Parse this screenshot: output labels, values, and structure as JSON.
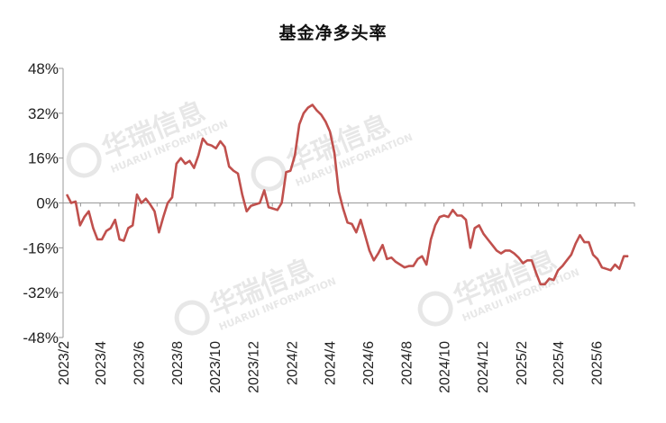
{
  "chart_data": {
    "type": "line",
    "title": "基金净多头率",
    "xlabel": "",
    "ylabel": "",
    "ylim": [
      -48,
      48
    ],
    "yticks": [
      "48%",
      "32%",
      "16%",
      "0%",
      "-16%",
      "-32%",
      "-48%"
    ],
    "ytick_values": [
      48,
      32,
      16,
      0,
      -16,
      -32,
      -48
    ],
    "xtick_labels": [
      "2023/2",
      "2023/4",
      "2023/6",
      "2023/8",
      "2023/10",
      "2023/12",
      "2024/2",
      "2024/4",
      "2024/6",
      "2024/8",
      "2024/10",
      "2024/12",
      "2025/2",
      "2025/4",
      "2025/6"
    ],
    "grid": false,
    "legend": "none",
    "line_color": "#c0504d",
    "x": [
      "2023-02-07",
      "2023-02-14",
      "2023-02-21",
      "2023-02-28",
      "2023-03-07",
      "2023-03-14",
      "2023-03-21",
      "2023-03-28",
      "2023-04-04",
      "2023-04-11",
      "2023-04-18",
      "2023-04-25",
      "2023-05-02",
      "2023-05-09",
      "2023-05-16",
      "2023-05-23",
      "2023-05-30",
      "2023-06-06",
      "2023-06-13",
      "2023-06-20",
      "2023-06-27",
      "2023-07-04",
      "2023-07-11",
      "2023-07-18",
      "2023-07-25",
      "2023-08-01",
      "2023-08-08",
      "2023-08-15",
      "2023-08-22",
      "2023-08-29",
      "2023-09-05",
      "2023-09-12",
      "2023-09-19",
      "2023-09-26",
      "2023-10-03",
      "2023-10-10",
      "2023-10-17",
      "2023-10-24",
      "2023-10-31",
      "2023-11-07",
      "2023-11-14",
      "2023-11-21",
      "2023-11-28",
      "2023-12-05",
      "2023-12-12",
      "2023-12-19",
      "2023-12-26",
      "2024-01-02",
      "2024-01-09",
      "2024-01-16",
      "2024-01-23",
      "2024-01-30",
      "2024-02-06",
      "2024-02-13",
      "2024-02-20",
      "2024-02-27",
      "2024-03-05",
      "2024-03-12",
      "2024-03-19",
      "2024-03-26",
      "2024-04-02",
      "2024-04-09",
      "2024-04-16",
      "2024-04-23",
      "2024-04-30",
      "2024-05-07",
      "2024-05-14",
      "2024-05-21",
      "2024-05-28",
      "2024-06-04",
      "2024-06-11",
      "2024-06-18",
      "2024-06-25",
      "2024-07-02",
      "2024-07-09",
      "2024-07-16",
      "2024-07-23",
      "2024-07-30",
      "2024-08-06",
      "2024-08-13",
      "2024-08-20",
      "2024-08-27",
      "2024-09-03",
      "2024-09-10",
      "2024-09-17",
      "2024-09-24",
      "2024-10-01",
      "2024-10-08",
      "2024-10-15",
      "2024-10-22",
      "2024-10-29",
      "2024-11-05",
      "2024-11-12",
      "2024-11-19",
      "2024-11-26",
      "2024-12-03",
      "2024-12-10",
      "2024-12-17",
      "2024-12-24",
      "2024-12-31",
      "2025-01-07",
      "2025-01-14",
      "2025-01-21",
      "2025-01-28",
      "2025-02-04",
      "2025-02-11",
      "2025-02-18",
      "2025-02-25",
      "2025-03-04",
      "2025-03-11",
      "2025-03-18",
      "2025-03-25",
      "2025-04-01",
      "2025-04-08",
      "2025-04-15",
      "2025-04-22",
      "2025-04-29",
      "2025-05-06",
      "2025-05-13",
      "2025-05-20",
      "2025-05-27",
      "2025-06-03",
      "2025-06-10",
      "2025-06-17",
      "2025-06-24",
      "2025-07-01",
      "2025-07-08",
      "2025-07-15",
      "2025-07-22"
    ],
    "values": [
      3,
      0,
      0.5,
      -8,
      -5,
      -3,
      -9,
      -13,
      -13,
      -10,
      -9,
      -6,
      -13,
      -13.5,
      -9,
      -8,
      3,
      0,
      1.5,
      -0.5,
      -3,
      -10.5,
      -5,
      0,
      2,
      14,
      16,
      14,
      15,
      12.5,
      17,
      23,
      21,
      20.5,
      19.5,
      22,
      20,
      13,
      11.5,
      10.5,
      3,
      -3,
      -1,
      -0.5,
      0,
      4.5,
      -1.5,
      -2,
      -2.5,
      0,
      11,
      11.5,
      17,
      28,
      32,
      34,
      35,
      33,
      31.5,
      29,
      25.5,
      18,
      4,
      -2,
      -7,
      -7.5,
      -10.5,
      -6,
      -11.5,
      -17,
      -20.5,
      -18,
      -15,
      -20,
      -19.5,
      -21,
      -22,
      -23,
      -22.5,
      -22.5,
      -20,
      -19,
      -22,
      -13,
      -8,
      -5,
      -4.5,
      -5,
      -2.5,
      -4.5,
      -4.5,
      -6,
      -16,
      -9,
      -8,
      -11,
      -13,
      -15,
      -17,
      -18,
      -17,
      -17,
      -18,
      -19.5,
      -21.5,
      -20.5,
      -20.5,
      -25,
      -29,
      -29,
      -27,
      -27.5,
      -24,
      -22.5,
      -20.5,
      -18.5,
      -14.5,
      -11.5,
      -14,
      -14,
      -18.5,
      -20,
      -23,
      -23.5,
      -24,
      -22,
      -23.5,
      -19,
      -19
    ]
  },
  "watermarks": [
    {
      "name": "华瑞信息",
      "sub": "HUARUI INFORMATION"
    },
    {
      "name": "华瑞信息",
      "sub": "HUARUI INFORMATION"
    },
    {
      "name": "华瑞信息",
      "sub": "HUARUI INFORMATION"
    },
    {
      "name": "华瑞信息",
      "sub": "HUARUI INFORMATION"
    }
  ]
}
